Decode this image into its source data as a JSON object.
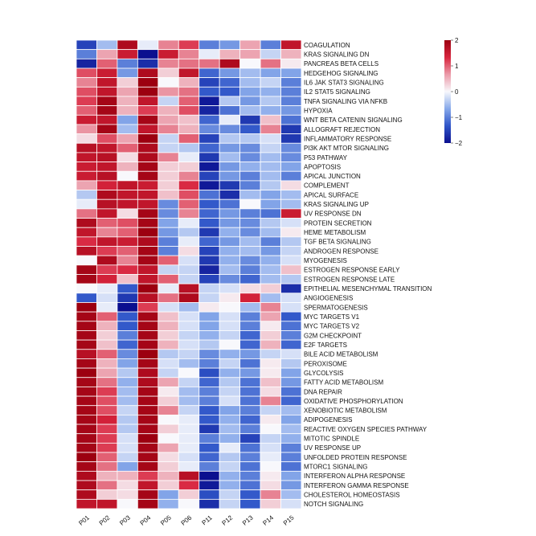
{
  "chart_data": {
    "type": "heatmap",
    "title": "",
    "columns": [
      "P01",
      "P02",
      "P03",
      "P04",
      "P05",
      "P06",
      "P11",
      "P12",
      "P13",
      "P14",
      "P15"
    ],
    "rows": [
      "COAGULATION",
      "KRAS SIGNALING DN",
      "PANCREAS BETA CELLS",
      "HEDGEHOG SIGNALING",
      "IL6 JAK STAT3 SIGNALING",
      "IL2 STAT5 SIGNALING",
      "TNFA SIGNALING VIA NFKB",
      "HYPOXIA",
      "WNT BETA CATENIN SIGNALING",
      "ALLOGRAFT REJECTION",
      "INFLAMMATORY RESPONSE",
      "PI3K AKT MTOR SIGNALING",
      "P53 PATHWAY",
      "APOPTOSIS",
      "APICAL JUNCTION",
      "COMPLEMENT",
      "APICAL SURFACE",
      "KRAS SIGNALING UP",
      "UV RESPONSE DN",
      "PROTEIN SECRETION",
      "HEME METABOLISM",
      "TGF BETA SIGNALING",
      "ANDROGEN RESPONSE",
      "MYOGENESIS",
      "ESTROGEN RESPONSE EARLY",
      "ESTROGEN RESPONSE LATE",
      "EPITHELIAL MESENCHYMAL TRANSITION",
      "ANGIOGENESIS",
      "SPERMATOGENESIS",
      "MYC TARGETS V1",
      "MYC TARGETS V2",
      "G2M CHECKPOINT",
      "E2F TARGETS",
      "BILE ACID METABOLISM",
      "PEROXISOME",
      "GLYCOLYSIS",
      "FATTY ACID METABOLISM",
      "DNA REPAIR",
      "OXIDATIVE PHOSPHORYLATION",
      "XENOBIOTIC METABOLISM",
      "ADIPOGENESIS",
      "REACTIVE OXYGEN SPECIES PATHWAY",
      "MITOTIC SPINDLE",
      "UV RESPONSE UP",
      "UNFOLDED PROTEIN RESPONSE",
      "MTORC1 SIGNALING",
      "INTERFERON ALPHA RESPONSE",
      "INTERFERON GAMMA RESPONSE",
      "CHOLESTEROL HOMEOSTASIS",
      "NOTCH SIGNALING"
    ],
    "values": [
      [
        -1.5,
        -0.5,
        1.8,
        -0.1,
        0.8,
        1.2,
        -1,
        -0.8,
        0.6,
        -1,
        1.6
      ],
      [
        -1,
        0.6,
        1.5,
        -2,
        1.5,
        0.8,
        -0.1,
        0.5,
        0.6,
        -0.3,
        0.5
      ],
      [
        -1.8,
        1,
        -1,
        -1.7,
        0.8,
        0.9,
        0.9,
        1.8,
        0,
        0.9,
        0.1
      ],
      [
        1.1,
        1.5,
        -0.8,
        1.8,
        0.3,
        1.6,
        -1.2,
        -0.8,
        -0.5,
        -0.7,
        -0.7
      ],
      [
        0.8,
        1.6,
        0.3,
        2,
        0,
        0.5,
        -1.5,
        -1.2,
        -0.5,
        -0.3,
        -1
      ],
      [
        1.1,
        1.6,
        0.6,
        2,
        0.7,
        0.9,
        -1.3,
        -1.3,
        -0.7,
        -0.6,
        -1
      ],
      [
        1.2,
        1.9,
        0.5,
        1.6,
        -0.3,
        1,
        -1.9,
        -0.4,
        -0.8,
        -0.4,
        -1
      ],
      [
        1,
        1.9,
        0.5,
        1.2,
        0.5,
        1.1,
        -1.8,
        -1.1,
        -0.5,
        -0.6,
        -0.8
      ],
      [
        1.5,
        1.6,
        -0.7,
        1.9,
        0.6,
        0.4,
        -1.2,
        -0.1,
        -1.6,
        0.4,
        -1.1
      ],
      [
        0.7,
        1.9,
        -0.5,
        1.6,
        0.8,
        0.5,
        -0.9,
        -0.9,
        -1.3,
        0.8,
        -1.6
      ],
      [
        0.2,
        1.1,
        0.6,
        2,
        -0.3,
        1,
        -1.5,
        -0.4,
        -0.4,
        -0.2,
        -1.6
      ],
      [
        1.7,
        1.6,
        1,
        1.8,
        -0.3,
        -0.4,
        -1.2,
        -0.8,
        -0.9,
        -0.3,
        -0.9
      ],
      [
        1.6,
        1.7,
        0.2,
        1.8,
        0.8,
        -0.1,
        -1.6,
        -0.5,
        -0.9,
        -0.5,
        -0.9
      ],
      [
        1.5,
        1.6,
        0.5,
        1.9,
        0.3,
        0.3,
        -1.9,
        -0.8,
        -0.6,
        -0.5,
        -0.7
      ],
      [
        1.5,
        1.7,
        0,
        1.9,
        0.3,
        0.8,
        -1.5,
        -0.8,
        -1,
        -0.5,
        -1
      ],
      [
        0.6,
        1.4,
        1.6,
        1.5,
        0.3,
        1.3,
        -1.9,
        -1.6,
        -1,
        -0.4,
        0.2
      ],
      [
        -0.4,
        1.8,
        1.6,
        1.6,
        0.4,
        1.1,
        -1.1,
        -1.7,
        -0.5,
        -0.7,
        -0.5
      ],
      [
        -0.1,
        1.7,
        1.6,
        1.6,
        -0.9,
        1,
        -1.3,
        -1.1,
        0,
        -0.7,
        -0.5
      ],
      [
        0.9,
        1.6,
        0.2,
        1.9,
        -0.9,
        0.8,
        -1.2,
        -0.8,
        -1,
        -1.1,
        1.5
      ],
      [
        1.8,
        1,
        1.1,
        1.9,
        -0.7,
        -0.1,
        -1.3,
        -0.8,
        -0.9,
        -0.4,
        -0.2
      ],
      [
        1.6,
        0.8,
        1,
        2,
        -0.8,
        -0.4,
        -1.6,
        -0.6,
        -0.9,
        -0.5,
        0.1
      ],
      [
        1.3,
        1.6,
        1.5,
        1.8,
        -1,
        -0.1,
        -1.2,
        -0.8,
        -0.5,
        -1,
        -0.4
      ],
      [
        1.7,
        1.2,
        1,
        1.9,
        -1,
        0.2,
        -1.5,
        -0.6,
        -0.5,
        -0.8,
        -0.3
      ],
      [
        0,
        1.8,
        0.8,
        1.9,
        1,
        -0.2,
        -1.6,
        -0.6,
        -0.9,
        -0.6,
        -0.2
      ],
      [
        1.9,
        1.2,
        1.3,
        1.6,
        -0.3,
        -0.3,
        -1.8,
        -0.5,
        -1,
        -0.5,
        0.4
      ],
      [
        1.9,
        1.4,
        0.4,
        1.6,
        1,
        -0.3,
        -1.5,
        -0.9,
        -1.2,
        -0.5,
        -0.4
      ],
      [
        0,
        -0.1,
        -1.3,
        2,
        -0.1,
        1.7,
        -0.3,
        -0.2,
        0.2,
        0.3,
        -1.7
      ],
      [
        -1.3,
        -0.2,
        -1.6,
        1.7,
        0.9,
        1.8,
        -0.3,
        0.1,
        1.4,
        -0.5,
        -0.2
      ],
      [
        2,
        -0.1,
        -2,
        1.2,
        -0.2,
        -0.5,
        0.1,
        0,
        -0.5,
        0.8,
        -0.2
      ],
      [
        1.9,
        1,
        -1.3,
        1.9,
        0.4,
        -0.2,
        -0.7,
        -0.2,
        -1,
        0.6,
        -1.3
      ],
      [
        1.9,
        0.5,
        -1.3,
        1.9,
        0.5,
        -0.2,
        -0.7,
        -0.2,
        -1,
        0.1,
        -1.1
      ],
      [
        1.9,
        0.3,
        -1,
        1.9,
        0.3,
        -0.3,
        -0.6,
        -0.3,
        -1.2,
        0.3,
        -1
      ],
      [
        1.9,
        0.4,
        -1.2,
        1.9,
        0.5,
        -0.2,
        -0.4,
        0,
        -1.2,
        0.5,
        -1.2
      ],
      [
        1.7,
        1,
        -0.9,
        2,
        -0.4,
        -0.3,
        -0.9,
        -0.6,
        -0.8,
        -0.3,
        -0.2
      ],
      [
        1.9,
        0.5,
        -0.7,
        1.9,
        -0.2,
        -0.5,
        -1,
        -0.3,
        -1.1,
        0.1,
        -0.4
      ],
      [
        2,
        0.6,
        -0.4,
        1.8,
        -0.3,
        0,
        -1.4,
        -0.6,
        -0.8,
        0.1,
        -0.7
      ],
      [
        1.9,
        0.9,
        -0.6,
        1.8,
        0.6,
        -0.3,
        -1.2,
        -0.4,
        -1.1,
        0.4,
        -0.8
      ],
      [
        1.9,
        1.2,
        -0.5,
        1.9,
        0.1,
        -0.5,
        -1,
        -0.3,
        -1.1,
        0.2,
        -1.1
      ],
      [
        1.9,
        1.1,
        -0.5,
        1.9,
        0.3,
        -0.5,
        -1,
        -0.2,
        -1.1,
        0.8,
        -1.2
      ],
      [
        1.9,
        1.1,
        -0.3,
        1.9,
        0.8,
        -0.3,
        -1.3,
        -0.7,
        -1,
        -0.3,
        -0.5
      ],
      [
        1.9,
        1.4,
        -0.4,
        1.9,
        0,
        -0.1,
        -1.3,
        -0.6,
        -1.2,
        0.1,
        -0.7
      ],
      [
        1.9,
        1.2,
        -0.4,
        1.9,
        0.3,
        -0.1,
        -1.6,
        -0.5,
        -1,
        0,
        -0.5
      ],
      [
        1.9,
        1.2,
        -0.2,
        2,
        0,
        -0.1,
        -1,
        -0.6,
        -1.5,
        -0.3,
        -0.6
      ],
      [
        1.9,
        1.2,
        -0.2,
        1.9,
        0.6,
        -0.1,
        -1.3,
        -0.1,
        -1.1,
        -0.2,
        -1
      ],
      [
        2,
        1,
        -0.3,
        1.9,
        0.2,
        -0.2,
        -1.2,
        -0.4,
        -1,
        -0.1,
        -1
      ],
      [
        1.9,
        0.9,
        -0.7,
        1.9,
        0.3,
        -0.1,
        -1,
        -0.3,
        -1.1,
        0,
        -1.1
      ],
      [
        1.8,
        0.5,
        0.5,
        1.2,
        0.5,
        1.7,
        -2,
        -0.6,
        -1,
        0.1,
        -0.7
      ],
      [
        1.8,
        0.9,
        0.2,
        1.6,
        0.3,
        1.3,
        -1.9,
        -0.6,
        -1.1,
        0.2,
        -0.8
      ],
      [
        1.8,
        0.3,
        0.2,
        1.9,
        -0.7,
        0.3,
        -1.4,
        -0.3,
        -1.3,
        0.8,
        -0.5
      ],
      [
        1.6,
        1.6,
        0,
        1.9,
        -0.6,
        0,
        -1.7,
        -0.3,
        -1.3,
        0.3,
        -0.2
      ]
    ],
    "colorbar": {
      "range": [
        -2,
        2
      ],
      "ticks": [
        "2",
        "1",
        "0",
        "−1",
        "−2"
      ],
      "tick_values": [
        2,
        1,
        0,
        -1,
        -2
      ]
    },
    "colormap": {
      "stops": [
        -2,
        -1.33,
        -0.67,
        0,
        0.67,
        1.33,
        2
      ],
      "colors": [
        "#0b0f8f",
        "#2f55c8",
        "#86a8ea",
        "#f8f8fc",
        "#eb9aa8",
        "#d8253e",
        "#9c0010"
      ]
    },
    "legend": "top-right"
  }
}
